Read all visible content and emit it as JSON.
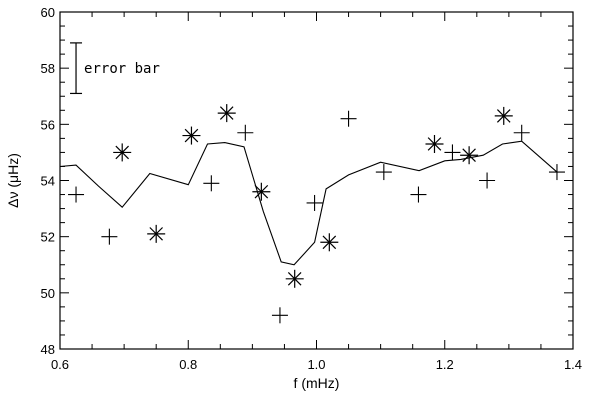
{
  "chart_data": {
    "type": "scatter",
    "xlabel": "f (mHz)",
    "ylabel": "Δν (μHz)",
    "xlim": [
      0.6,
      1.4
    ],
    "ylim": [
      48,
      60
    ],
    "x_ticks": [
      0.6,
      0.8,
      1.0,
      1.2,
      1.4
    ],
    "x_tick_labels": [
      "0.6",
      "0.8",
      "1.0",
      "1.2",
      "1.4"
    ],
    "y_ticks": [
      48,
      50,
      52,
      54,
      56,
      58,
      60
    ],
    "y_tick_labels": [
      "48",
      "50",
      "52",
      "54",
      "56",
      "58",
      "60"
    ],
    "grid": false,
    "legend": {
      "label": "error bar",
      "placement": "top-left",
      "error_bar_y": [
        57.1,
        58.9
      ]
    },
    "series": [
      {
        "marker": "plus",
        "points": [
          {
            "x": 0.625,
            "y": 53.5
          },
          {
            "x": 0.677,
            "y": 52.0
          },
          {
            "x": 0.836,
            "y": 53.9
          },
          {
            "x": 0.889,
            "y": 55.7
          },
          {
            "x": 0.943,
            "y": 49.2
          },
          {
            "x": 0.997,
            "y": 53.2
          },
          {
            "x": 1.05,
            "y": 56.2
          },
          {
            "x": 1.105,
            "y": 54.3
          },
          {
            "x": 1.159,
            "y": 53.5
          },
          {
            "x": 1.212,
            "y": 55.0
          },
          {
            "x": 1.266,
            "y": 54.0
          },
          {
            "x": 1.32,
            "y": 55.7
          },
          {
            "x": 1.375,
            "y": 54.3
          }
        ]
      },
      {
        "marker": "asterisk",
        "points": [
          {
            "x": 0.697,
            "y": 55.0
          },
          {
            "x": 0.75,
            "y": 52.1
          },
          {
            "x": 0.805,
            "y": 55.6
          },
          {
            "x": 0.86,
            "y": 56.4
          },
          {
            "x": 0.914,
            "y": 53.6
          },
          {
            "x": 0.966,
            "y": 50.5
          },
          {
            "x": 1.02,
            "y": 51.8
          },
          {
            "x": 1.184,
            "y": 55.3
          },
          {
            "x": 1.238,
            "y": 54.9
          },
          {
            "x": 1.292,
            "y": 56.3
          }
        ]
      },
      {
        "marker": "line",
        "points": [
          {
            "x": 0.6,
            "y": 54.5
          },
          {
            "x": 0.625,
            "y": 54.55
          },
          {
            "x": 0.66,
            "y": 53.8
          },
          {
            "x": 0.697,
            "y": 53.05
          },
          {
            "x": 0.74,
            "y": 54.25
          },
          {
            "x": 0.8,
            "y": 53.85
          },
          {
            "x": 0.83,
            "y": 55.3
          },
          {
            "x": 0.857,
            "y": 55.35
          },
          {
            "x": 0.887,
            "y": 55.2
          },
          {
            "x": 0.917,
            "y": 52.9
          },
          {
            "x": 0.945,
            "y": 51.1
          },
          {
            "x": 0.965,
            "y": 51.0
          },
          {
            "x": 0.997,
            "y": 51.8
          },
          {
            "x": 1.015,
            "y": 53.7
          },
          {
            "x": 1.05,
            "y": 54.2
          },
          {
            "x": 1.1,
            "y": 54.65
          },
          {
            "x": 1.16,
            "y": 54.35
          },
          {
            "x": 1.2,
            "y": 54.7
          },
          {
            "x": 1.225,
            "y": 54.75
          },
          {
            "x": 1.26,
            "y": 54.9
          },
          {
            "x": 1.29,
            "y": 55.3
          },
          {
            "x": 1.32,
            "y": 55.4
          },
          {
            "x": 1.375,
            "y": 54.3
          }
        ]
      }
    ]
  }
}
